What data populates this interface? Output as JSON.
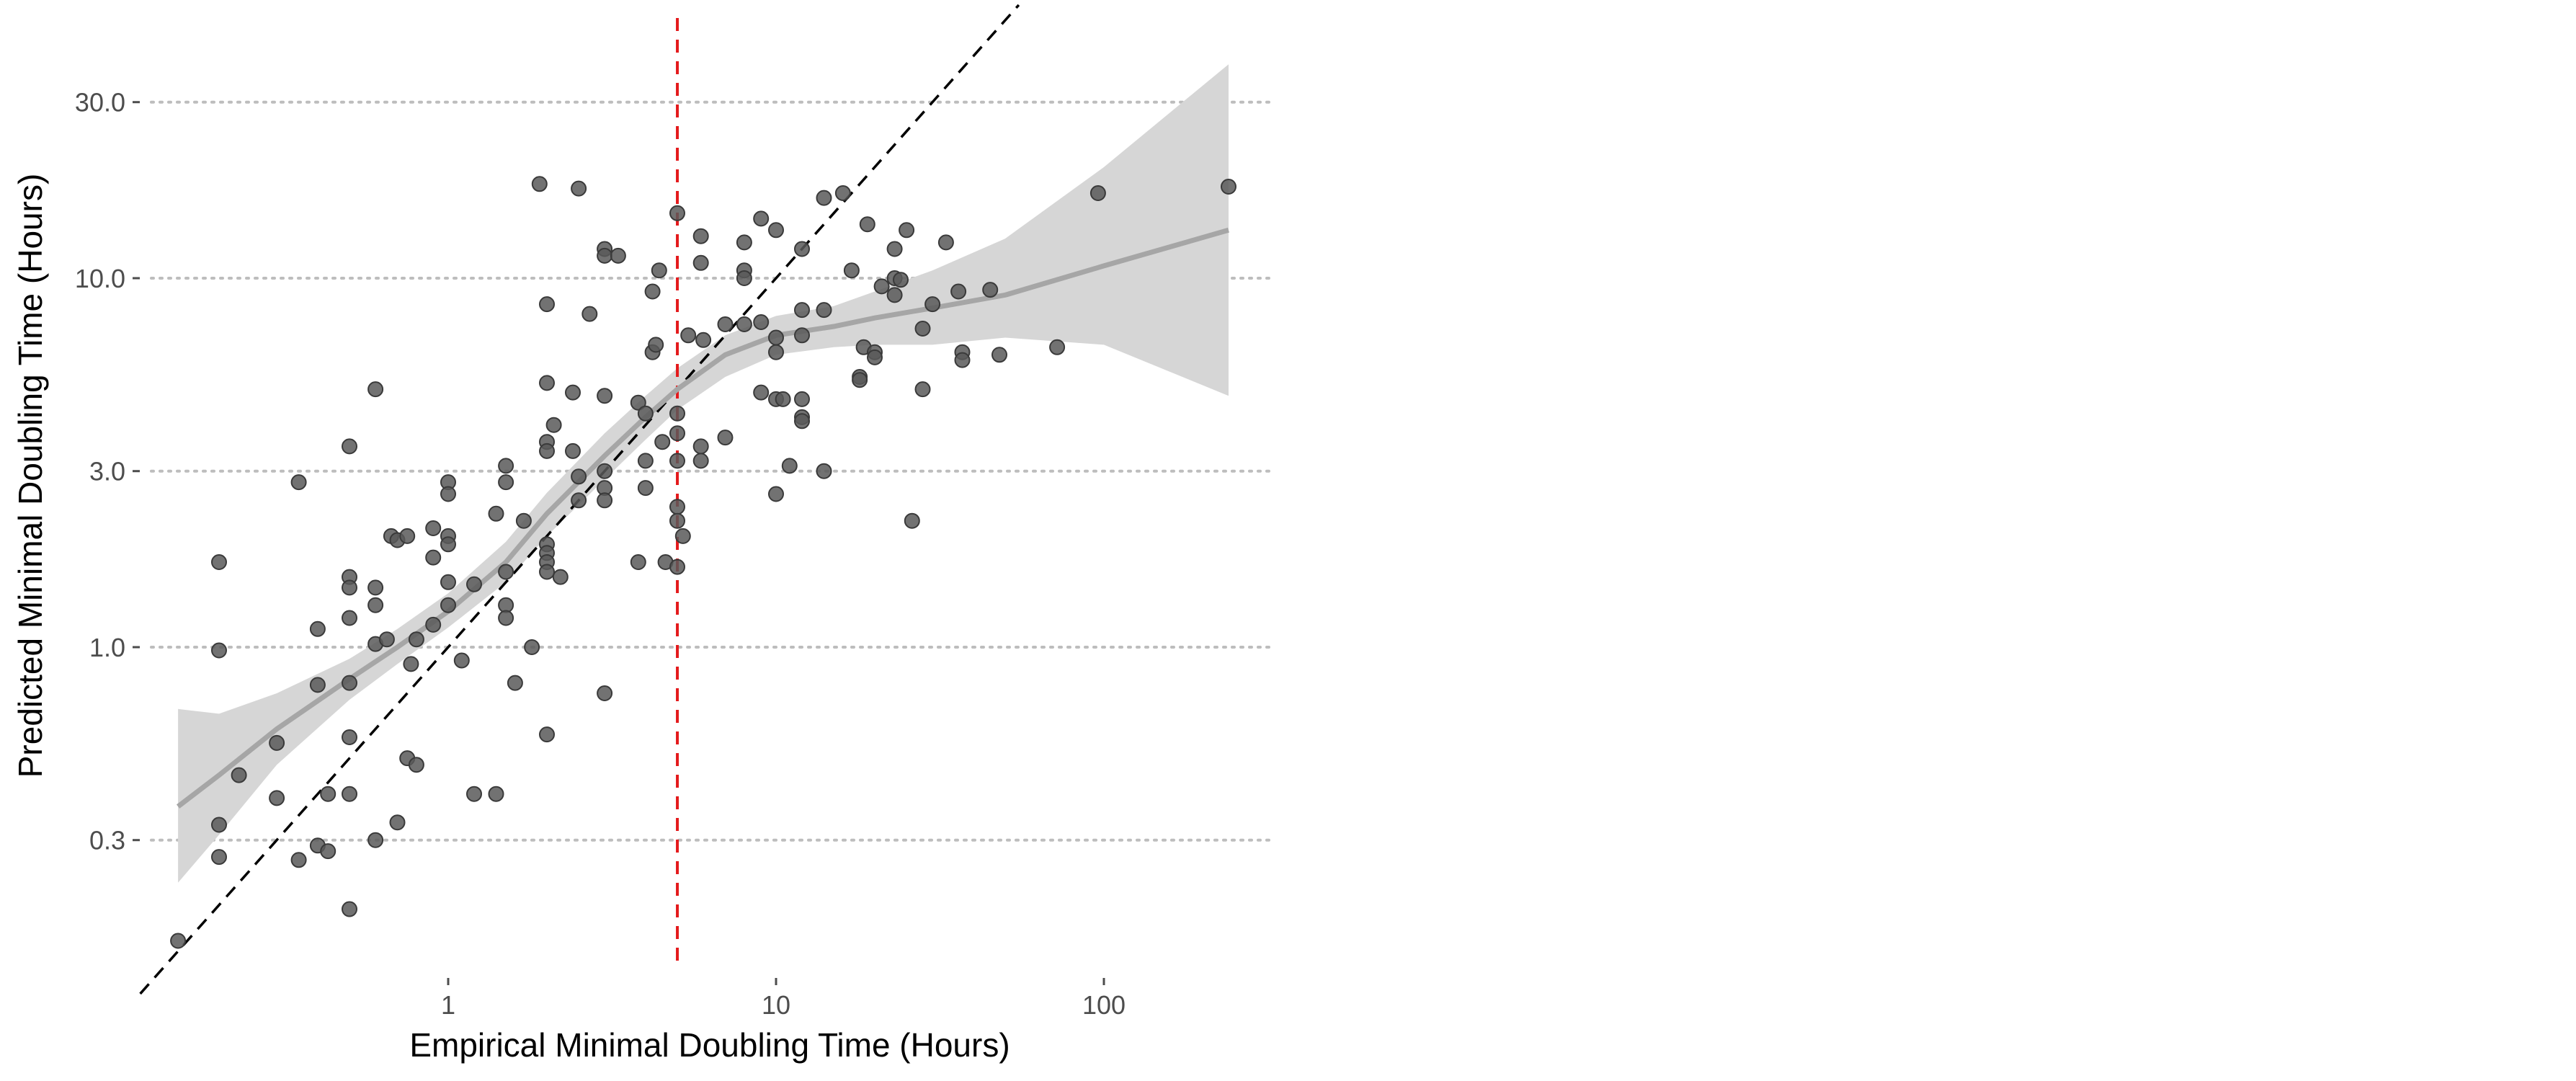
{
  "chart_data": {
    "type": "scatter",
    "title": "",
    "xlabel": "Empirical Minimal Doubling Time (Hours)",
    "ylabel": "Predicted Minimal Doubling Time (Hours)",
    "x_scale": "log10",
    "y_scale": "log10",
    "xlim": [
      0.1,
      300
    ],
    "ylim": [
      0.11,
      55
    ],
    "x_ticks": [
      1,
      10,
      100
    ],
    "x_tick_labels": [
      "1",
      "10",
      "100"
    ],
    "y_ticks": [
      0.3,
      1.0,
      3.0,
      10.0,
      30.0
    ],
    "y_tick_labels": [
      "0.3",
      "1.0",
      "3.0",
      "10.0",
      "30.0"
    ],
    "grid": "horizontal dotted at y ticks",
    "reference_vline": {
      "x": 5,
      "color": "#e41a1c",
      "style": "dashed"
    },
    "identity_line": {
      "slope": 1,
      "color": "#000000",
      "style": "dashed"
    },
    "smooth": {
      "color": "#a6a6a6",
      "band_color": "#d6d6d6",
      "x": [
        0.15,
        0.2,
        0.3,
        0.5,
        0.7,
        1.0,
        1.5,
        2.0,
        3.0,
        4.0,
        5.0,
        7.0,
        10,
        15,
        20,
        30,
        50,
        100,
        240
      ],
      "y": [
        0.37,
        0.45,
        0.6,
        0.82,
        1.0,
        1.25,
        1.7,
        2.3,
        3.3,
        4.2,
        5.0,
        6.2,
        7.0,
        7.4,
        7.8,
        8.3,
        9.0,
        10.8,
        13.5
      ],
      "lower": [
        0.23,
        0.31,
        0.48,
        0.72,
        0.9,
        1.13,
        1.5,
        2.0,
        2.85,
        3.65,
        4.4,
        5.4,
        6.2,
        6.5,
        6.6,
        6.6,
        6.9,
        6.6,
        4.8
      ],
      "upper": [
        0.68,
        0.66,
        0.75,
        0.93,
        1.12,
        1.4,
        1.93,
        2.62,
        3.8,
        4.8,
        5.7,
        7.0,
        7.9,
        8.4,
        9.2,
        10.5,
        12.8,
        20,
        38
      ]
    },
    "series": [
      {
        "color": "#595959",
        "points": [
          [
            0.15,
            0.16
          ],
          [
            0.2,
            1.7
          ],
          [
            0.2,
            0.98
          ],
          [
            0.2,
            0.33
          ],
          [
            0.2,
            0.27
          ],
          [
            0.23,
            0.45
          ],
          [
            0.3,
            0.39
          ],
          [
            0.3,
            0.55
          ],
          [
            0.35,
            2.8
          ],
          [
            0.35,
            0.265
          ],
          [
            0.4,
            0.79
          ],
          [
            0.4,
            1.12
          ],
          [
            0.4,
            0.29
          ],
          [
            0.43,
            0.4
          ],
          [
            0.43,
            0.28
          ],
          [
            0.5,
            1.55
          ],
          [
            0.5,
            1.45
          ],
          [
            0.5,
            1.2
          ],
          [
            0.5,
            3.5
          ],
          [
            0.5,
            0.8
          ],
          [
            0.5,
            0.57
          ],
          [
            0.5,
            0.4
          ],
          [
            0.5,
            0.195
          ],
          [
            0.6,
            5.0
          ],
          [
            0.6,
            1.45
          ],
          [
            0.6,
            1.3
          ],
          [
            0.6,
            1.02
          ],
          [
            0.6,
            0.3
          ],
          [
            0.65,
            1.05
          ],
          [
            0.67,
            2.0
          ],
          [
            0.7,
            1.95
          ],
          [
            0.7,
            0.335
          ],
          [
            0.75,
            2.0
          ],
          [
            0.75,
            0.5
          ],
          [
            0.77,
            0.9
          ],
          [
            0.8,
            0.48
          ],
          [
            0.8,
            1.05
          ],
          [
            0.9,
            2.1
          ],
          [
            0.9,
            1.75
          ],
          [
            0.9,
            1.15
          ],
          [
            1.0,
            2.8
          ],
          [
            1.0,
            2.6
          ],
          [
            1.0,
            2.0
          ],
          [
            1.0,
            1.9
          ],
          [
            1.0,
            1.5
          ],
          [
            1.0,
            1.3
          ],
          [
            1.1,
            0.92
          ],
          [
            1.2,
            0.4
          ],
          [
            1.2,
            1.48
          ],
          [
            1.4,
            0.4
          ],
          [
            1.4,
            2.3
          ],
          [
            1.5,
            3.1
          ],
          [
            1.5,
            2.8
          ],
          [
            1.5,
            1.6
          ],
          [
            1.5,
            1.3
          ],
          [
            1.5,
            1.2
          ],
          [
            1.6,
            0.8
          ],
          [
            1.7,
            2.2
          ],
          [
            1.8,
            1.0
          ],
          [
            1.9,
            18.0
          ],
          [
            2.0,
            8.5
          ],
          [
            2.0,
            5.2
          ],
          [
            2.0,
            3.6
          ],
          [
            2.0,
            3.4
          ],
          [
            2.0,
            1.9
          ],
          [
            2.0,
            1.8
          ],
          [
            2.0,
            1.7
          ],
          [
            2.0,
            1.6
          ],
          [
            2.0,
            0.58
          ],
          [
            2.1,
            4.0
          ],
          [
            2.2,
            1.55
          ],
          [
            2.4,
            4.9
          ],
          [
            2.4,
            3.4
          ],
          [
            2.5,
            2.9
          ],
          [
            2.5,
            17.5
          ],
          [
            2.5,
            2.5
          ],
          [
            2.7,
            8.0
          ],
          [
            3.0,
            12.0
          ],
          [
            3.0,
            11.5
          ],
          [
            3.0,
            4.8
          ],
          [
            3.0,
            3.0
          ],
          [
            3.0,
            2.7
          ],
          [
            3.0,
            2.5
          ],
          [
            3.0,
            0.75
          ],
          [
            3.3,
            11.5
          ],
          [
            3.8,
            4.6
          ],
          [
            3.8,
            1.7
          ],
          [
            4.0,
            2.7
          ],
          [
            4.0,
            3.2
          ],
          [
            4.0,
            4.3
          ],
          [
            4.2,
            9.2
          ],
          [
            4.2,
            6.3
          ],
          [
            4.3,
            6.6
          ],
          [
            4.4,
            10.5
          ],
          [
            4.5,
            3.6
          ],
          [
            4.6,
            1.7
          ],
          [
            5.0,
            4.3
          ],
          [
            5.0,
            3.8
          ],
          [
            5.0,
            3.2
          ],
          [
            5.0,
            2.4
          ],
          [
            5.0,
            2.2
          ],
          [
            5.0,
            1.65
          ],
          [
            5.0,
            15.0
          ],
          [
            5.2,
            2.0
          ],
          [
            5.4,
            7.0
          ],
          [
            5.9,
            3.5
          ],
          [
            5.9,
            3.2
          ],
          [
            5.9,
            13.0
          ],
          [
            5.9,
            11.0
          ],
          [
            6.0,
            6.8
          ],
          [
            7.0,
            7.5
          ],
          [
            7.0,
            3.7
          ],
          [
            8.0,
            12.5
          ],
          [
            8.0,
            10.5
          ],
          [
            8.0,
            10.0
          ],
          [
            8.0,
            7.5
          ],
          [
            9.0,
            7.6
          ],
          [
            9.0,
            4.9
          ],
          [
            9.0,
            14.5
          ],
          [
            10.0,
            13.5
          ],
          [
            10.0,
            6.9
          ],
          [
            10.0,
            6.3
          ],
          [
            10.0,
            2.6
          ],
          [
            10.0,
            4.7
          ],
          [
            10.5,
            4.7
          ],
          [
            11.0,
            3.1
          ],
          [
            12.0,
            4.7
          ],
          [
            12.0,
            4.2
          ],
          [
            12.0,
            4.1
          ],
          [
            12.0,
            7.0
          ],
          [
            12.0,
            8.2
          ],
          [
            12.0,
            12.0
          ],
          [
            14.0,
            16.5
          ],
          [
            14.0,
            8.2
          ],
          [
            14.0,
            3.0
          ],
          [
            16.0,
            17.0
          ],
          [
            17.0,
            10.5
          ],
          [
            18.0,
            5.4
          ],
          [
            18.0,
            5.3
          ],
          [
            18.5,
            6.5
          ],
          [
            19.0,
            14.0
          ],
          [
            20.0,
            6.3
          ],
          [
            20.0,
            6.1
          ],
          [
            21.0,
            9.5
          ],
          [
            23.0,
            12.0
          ],
          [
            23.0,
            10.0
          ],
          [
            23.0,
            9.0
          ],
          [
            24.0,
            9.9
          ],
          [
            25.0,
            13.5
          ],
          [
            26.0,
            2.2
          ],
          [
            28.0,
            5.0
          ],
          [
            28.0,
            7.3
          ],
          [
            30.0,
            8.5
          ],
          [
            33.0,
            12.5
          ],
          [
            36.0,
            9.2
          ],
          [
            37.0,
            6.3
          ],
          [
            37.0,
            6.0
          ],
          [
            45.0,
            9.3
          ],
          [
            48.0,
            6.2
          ],
          [
            72.0,
            6.5
          ],
          [
            96.0,
            17.0
          ],
          [
            240.0,
            17.7
          ]
        ]
      }
    ]
  }
}
